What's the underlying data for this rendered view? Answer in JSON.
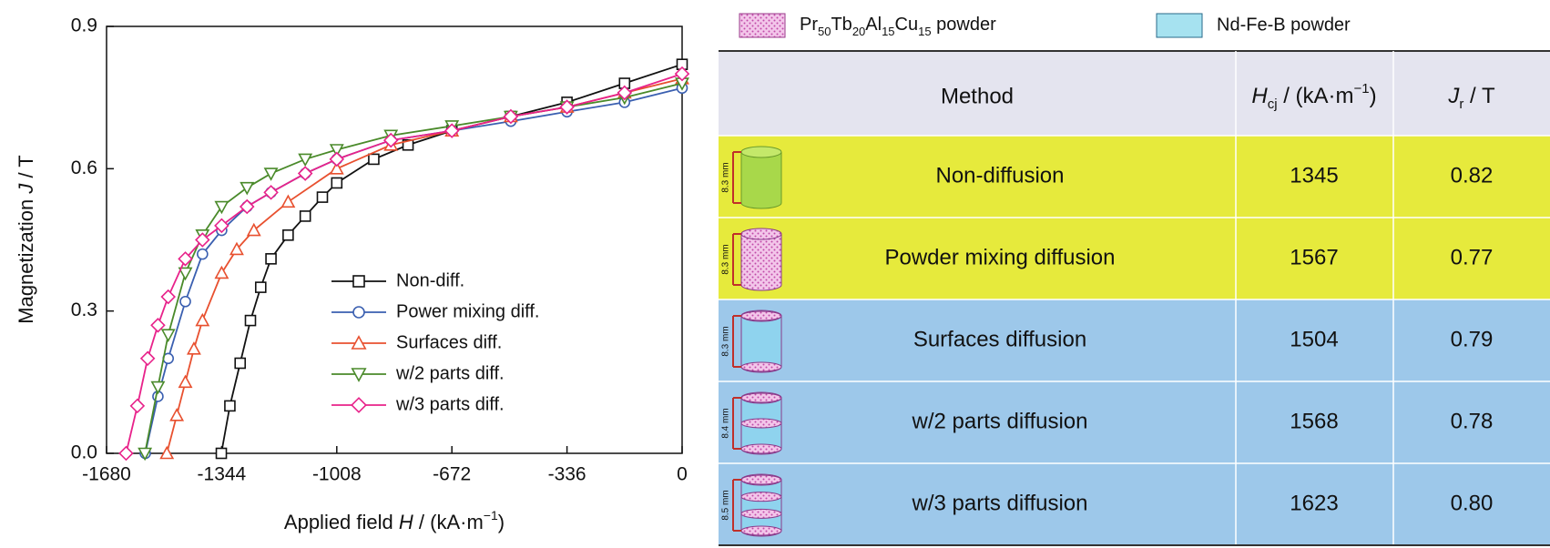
{
  "chart_data": {
    "type": "line",
    "xlabel": [
      "Applied field ",
      "H",
      " / (kA·m",
      "−1",
      ")"
    ],
    "ylabel": [
      "Magnetization ",
      "J",
      " / T"
    ],
    "xlim": [
      -1680,
      0
    ],
    "ylim": [
      0,
      0.9
    ],
    "xticks": [
      -1680,
      -1344,
      -1008,
      -672,
      -336,
      0
    ],
    "yticks": [
      {
        "value": 0,
        "label": "0.0"
      },
      0.3,
      0.6,
      0.9
    ],
    "series": [
      {
        "name": "Non-diff.",
        "color": "#111111",
        "marker": "square",
        "x": [
          -1345,
          -1320,
          -1290,
          -1260,
          -1230,
          -1200,
          -1150,
          -1100,
          -1050,
          -1008,
          -900,
          -800,
          -672,
          -500,
          -336,
          -168,
          0
        ],
        "values": [
          0,
          0.1,
          0.19,
          0.28,
          0.35,
          0.41,
          0.46,
          0.5,
          0.54,
          0.57,
          0.62,
          0.65,
          0.68,
          0.71,
          0.74,
          0.78,
          0.82
        ]
      },
      {
        "name": "Power mixing diff.",
        "color": "#3a5fb0",
        "marker": "circle",
        "x": [
          -1567,
          -1530,
          -1500,
          -1450,
          -1400,
          -1344,
          -1270,
          -1200,
          -1100,
          -1008,
          -850,
          -672,
          -500,
          -336,
          -168,
          0
        ],
        "values": [
          0,
          0.12,
          0.2,
          0.32,
          0.42,
          0.47,
          0.52,
          0.55,
          0.59,
          0.62,
          0.66,
          0.68,
          0.7,
          0.72,
          0.74,
          0.77
        ]
      },
      {
        "name": "Surfaces diff.",
        "color": "#e8502f",
        "marker": "triangle",
        "x": [
          -1504,
          -1475,
          -1450,
          -1425,
          -1400,
          -1344,
          -1300,
          -1250,
          -1150,
          -1008,
          -850,
          -672,
          -500,
          -336,
          -168,
          0
        ],
        "values": [
          0,
          0.08,
          0.15,
          0.22,
          0.28,
          0.38,
          0.43,
          0.47,
          0.53,
          0.6,
          0.65,
          0.68,
          0.71,
          0.73,
          0.76,
          0.79
        ]
      },
      {
        "name": "w/2 parts diff.",
        "color": "#4a8a2a",
        "marker": "triangle-down",
        "x": [
          -1568,
          -1530,
          -1500,
          -1450,
          -1400,
          -1344,
          -1270,
          -1200,
          -1100,
          -1008,
          -850,
          -672,
          -500,
          -336,
          -168,
          0
        ],
        "values": [
          0,
          0.14,
          0.25,
          0.38,
          0.46,
          0.52,
          0.56,
          0.59,
          0.62,
          0.64,
          0.67,
          0.69,
          0.71,
          0.73,
          0.75,
          0.78
        ]
      },
      {
        "name": "w/3 parts diff.",
        "color": "#e8228a",
        "marker": "diamond",
        "x": [
          -1623,
          -1590,
          -1560,
          -1530,
          -1500,
          -1450,
          -1400,
          -1344,
          -1270,
          -1200,
          -1100,
          -1008,
          -850,
          -672,
          -500,
          -336,
          -168,
          0
        ],
        "values": [
          0,
          0.1,
          0.2,
          0.27,
          0.33,
          0.41,
          0.45,
          0.48,
          0.52,
          0.55,
          0.59,
          0.62,
          0.66,
          0.68,
          0.71,
          0.73,
          0.76,
          0.8
        ]
      }
    ]
  },
  "table": {
    "key": [
      [
        "Pr",
        "50",
        "Tb",
        "20",
        "Al",
        "15",
        "Cu",
        "15",
        " powder"
      ],
      "Nd-Fe-B powder"
    ],
    "header": [
      "Method",
      [
        "H",
        "cj",
        " / (kA·m",
        "−1",
        ")"
      ],
      [
        "J",
        "r",
        " / T"
      ]
    ],
    "rows": [
      [
        "Non-diffusion",
        "1345",
        "0.82",
        "8.3 mm"
      ],
      [
        "Powder mixing diffusion",
        "1567",
        "0.77",
        "8.3 mm"
      ],
      [
        "Surfaces diffusion",
        "1504",
        "0.79",
        "8.3 mm"
      ],
      [
        "w/2 parts diffusion",
        "1568",
        "0.78",
        "8.4 mm"
      ],
      [
        "w/3 parts diffusion",
        "1623",
        "0.80",
        "8.5 mm"
      ]
    ]
  }
}
